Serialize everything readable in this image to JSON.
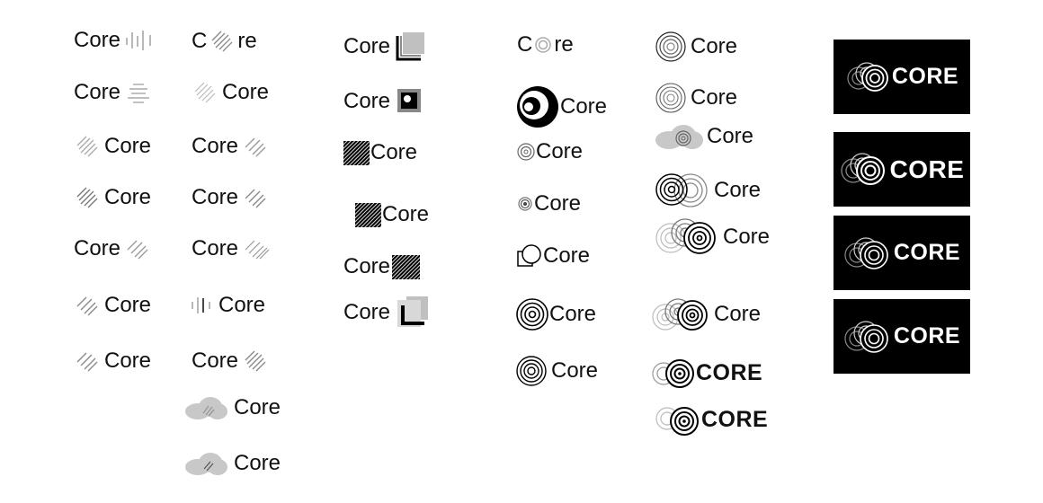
{
  "brand": {
    "word": "Core",
    "word_caps": "CORE"
  },
  "colors": {
    "ink": "#111111",
    "stripe_gray": "#999999",
    "light_gray": "#c8c8c8",
    "panel": "#000000",
    "panel_text": "#ffffff"
  },
  "variants": [
    {
      "icon": "vertical-bars-icon"
    },
    {
      "icon": "horizontal-lines-icon"
    },
    {
      "icon": "diagonal-stripes-icon"
    },
    {
      "icon": "square-corner-icon"
    },
    {
      "icon": "striped-square-icon"
    },
    {
      "icon": "concentric-rings-icon"
    },
    {
      "icon": "cloud-icon"
    },
    {
      "icon": "crescent-icon"
    },
    {
      "icon": "square-circle-icon"
    }
  ]
}
